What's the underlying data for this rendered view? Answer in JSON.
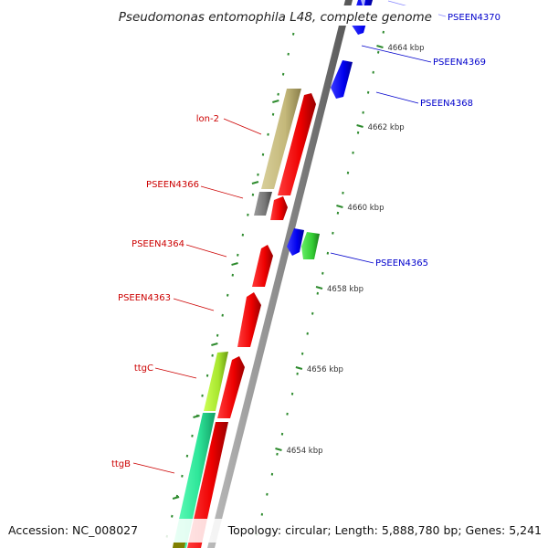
{
  "title": "Pseudomonas entomophila L48, complete genome",
  "footer": {
    "accession": "Accession: NC_008027",
    "summary": "Topology: circular; Length: 5,888,780 bp; Genes: 5,241"
  },
  "colors": {
    "backbone": "#888888",
    "ruler": "#2e8b2e",
    "forward_label": "#cc0000",
    "reverse_label": "#0000cc"
  },
  "ruler": {
    "unit": "kbp",
    "major_ticks": [
      "4654 kbp",
      "4656 kbp",
      "4658 kbp",
      "4660 kbp",
      "4662 kbp",
      "4664 kbp"
    ]
  },
  "gene_labels": {
    "left": [
      "lon-2",
      "PSEEN4366",
      "PSEEN4364",
      "PSEEN4363",
      "ttgC",
      "ttgB"
    ],
    "right": [
      "PSEEN4370",
      "PSEEN4369",
      "PSEEN4368",
      "PSEEN4365"
    ]
  }
}
